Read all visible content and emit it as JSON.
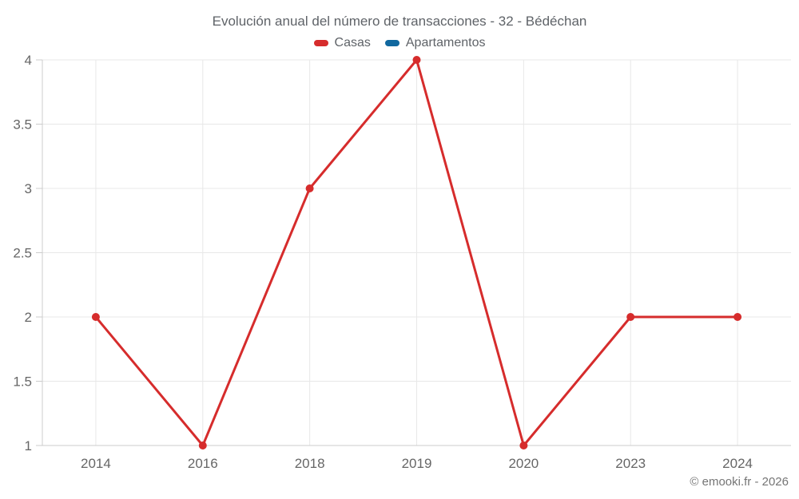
{
  "header": {
    "title": "Evolución anual del número de transacciones - 32 - Bédéchan"
  },
  "legend": {
    "items": [
      {
        "label": "Casas",
        "color": "#d62c2c"
      },
      {
        "label": "Apartamentos",
        "color": "#11689f"
      }
    ]
  },
  "footer": {
    "credit": "© emooki.fr - 2026"
  },
  "chart_data": {
    "type": "line",
    "title": "Evolución anual del número de transacciones - 32 - Bédéchan",
    "categories": [
      "2014",
      "2016",
      "2018",
      "2019",
      "2020",
      "2023",
      "2024"
    ],
    "series": [
      {
        "name": "Casas",
        "color": "#d62c2c",
        "values": [
          2,
          1,
          3,
          4,
          1,
          2,
          2
        ]
      },
      {
        "name": "Apartamentos",
        "color": "#11689f",
        "values": []
      }
    ],
    "xlabel": "",
    "ylabel": "",
    "ylim": [
      1,
      4
    ],
    "yticks": [
      1,
      1.5,
      2,
      2.5,
      3,
      3.5,
      4
    ],
    "grid": true,
    "legend_position": "top",
    "colors": {
      "gridline": "#e8e8e8",
      "axis_line": "#cccccc",
      "tick_mark": "#cccccc",
      "tick_label": "#666666"
    }
  }
}
